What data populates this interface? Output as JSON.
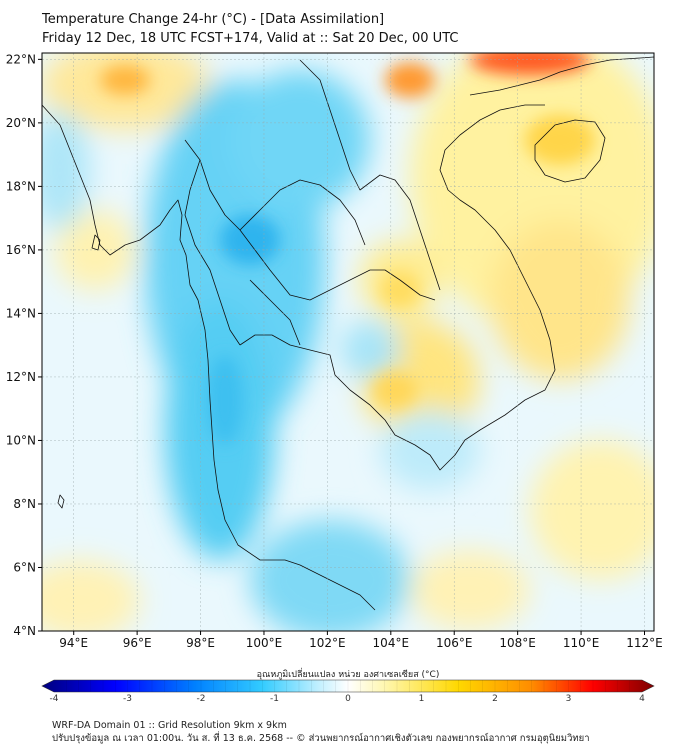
{
  "header": {
    "title_line1": "Temperature Change 24-hr (°C) - [Data Assimilation]",
    "title_line2": "Friday 12 Dec, 18 UTC FCST+174, Valid at :: Sat 20 Dec, 00 UTC"
  },
  "map": {
    "lat_ticks": [
      {
        "label": "22°N",
        "value": 22
      },
      {
        "label": "20°N",
        "value": 20
      },
      {
        "label": "18°N",
        "value": 18
      },
      {
        "label": "16°N",
        "value": 16
      },
      {
        "label": "14°N",
        "value": 14
      },
      {
        "label": "12°N",
        "value": 12
      },
      {
        "label": "10°N",
        "value": 10
      },
      {
        "label": "8°N",
        "value": 8
      },
      {
        "label": "6°N",
        "value": 6
      },
      {
        "label": "4°N",
        "value": 4
      }
    ],
    "lon_ticks": [
      {
        "label": "94°E",
        "value": 94
      },
      {
        "label": "96°E",
        "value": 96
      },
      {
        "label": "98°E",
        "value": 98
      },
      {
        "label": "100°E",
        "value": 100
      },
      {
        "label": "102°E",
        "value": 102
      },
      {
        "label": "104°E",
        "value": 104
      },
      {
        "label": "106°E",
        "value": 106
      },
      {
        "label": "108°E",
        "value": 108
      },
      {
        "label": "110°E",
        "value": 110
      },
      {
        "label": "112°E",
        "value": 112
      }
    ],
    "lon_range": [
      93.0,
      112.3
    ],
    "lat_range": [
      4.0,
      22.2
    ]
  },
  "colorbar": {
    "title": "อุณหภูมิเปลี่ยนแปลง หน่วย องศาเซลเซียส (°C)",
    "min": -4,
    "max": 4,
    "ticks": [
      {
        "label": "-4",
        "value": -4
      },
      {
        "label": "-3",
        "value": -3
      },
      {
        "label": "-2",
        "value": -2
      },
      {
        "label": "-1",
        "value": -1
      },
      {
        "label": "0",
        "value": 0
      },
      {
        "label": "1",
        "value": 1
      },
      {
        "label": "2",
        "value": 2
      },
      {
        "label": "3",
        "value": 3
      },
      {
        "label": "4",
        "value": 4
      }
    ],
    "colors": [
      "#00007f",
      "#0000ff",
      "#0080ff",
      "#33ccff",
      "#bfefff",
      "#ffffff",
      "#fff7b0",
      "#ffd800",
      "#ff8c00",
      "#ff0000",
      "#7f0000"
    ]
  },
  "footer": {
    "line1": "WRF-DA Domain 01 :: Grid Resolution 9km x 9km",
    "line2": "ปรับปรุงข้อมูล ณ เวลา 01:00น. วัน ส. ที่ 13 ธ.ค. 2568 -- © ส่วนพยากรณ์อากาศเชิงตัวเลข กองพยากรณ์อากาศ กรมอุตุนิยมวิทยา"
  }
}
